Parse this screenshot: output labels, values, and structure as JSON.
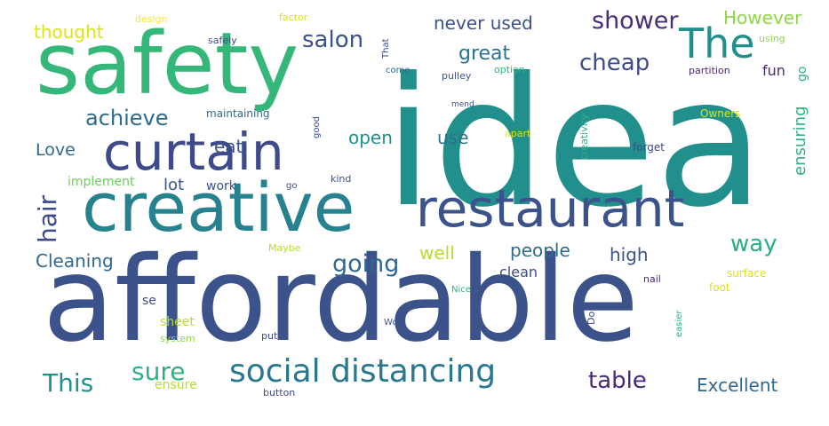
{
  "palette": {
    "navy": "#3b528b",
    "indigo": "#482878",
    "purple": "#440154",
    "blue": "#31688e",
    "teal": "#21908d",
    "teal2": "#26828e",
    "green": "#35b779",
    "green2": "#2db27d",
    "lime": "#6ece58",
    "lime2": "#8fd744",
    "yellow": "#b5de2b",
    "yellow2": "#dde318",
    "gold": "#fde725"
  },
  "words": [
    {
      "text": "idea",
      "color": "#21908d"
    },
    {
      "text": "affordable",
      "color": "#3b528b"
    },
    {
      "text": "safety",
      "color": "#35b779"
    },
    {
      "text": "creative",
      "color": "#26828e"
    },
    {
      "text": "restaurant",
      "color": "#3b528b"
    },
    {
      "text": "curtain",
      "color": "#3e4a89"
    },
    {
      "text": "The",
      "color": "#21908d"
    },
    {
      "text": "social distancing",
      "color": "#2a788e"
    },
    {
      "text": "achieve",
      "color": "#2f6b8e"
    },
    {
      "text": "salon",
      "color": "#3b528b"
    },
    {
      "text": "shower",
      "color": "#472d7b"
    },
    {
      "text": "cheap",
      "color": "#3e4a89"
    },
    {
      "text": "going",
      "color": "#31688e"
    },
    {
      "text": "hair",
      "color": "#3e4a89"
    },
    {
      "text": "This",
      "color": "#21918c"
    },
    {
      "text": "sure",
      "color": "#2db27d"
    },
    {
      "text": "table",
      "color": "#482878"
    },
    {
      "text": "way",
      "color": "#29af7f"
    },
    {
      "text": "Cleaning",
      "color": "#31688e"
    },
    {
      "text": "great",
      "color": "#2c728e"
    },
    {
      "text": "never used",
      "color": "#3b528b"
    },
    {
      "text": "However",
      "color": "#8fd744"
    },
    {
      "text": "thought",
      "color": "#dde318"
    },
    {
      "text": "eat",
      "color": "#3b528b"
    },
    {
      "text": "open",
      "color": "#21908d"
    },
    {
      "text": "use",
      "color": "#2c728e"
    },
    {
      "text": "Love",
      "color": "#31688e"
    },
    {
      "text": "people",
      "color": "#2f6b8e"
    },
    {
      "text": "high",
      "color": "#3b528b"
    },
    {
      "text": "well",
      "color": "#b5de2b"
    },
    {
      "text": "Excellent",
      "color": "#31688e"
    },
    {
      "text": "lot",
      "color": "#3b528b"
    },
    {
      "text": "ensuring",
      "color": "#2db27d"
    },
    {
      "text": "fun",
      "color": "#482878"
    },
    {
      "text": "go",
      "color": "#2db27d"
    },
    {
      "text": "implement",
      "color": "#6ece58"
    },
    {
      "text": "work",
      "color": "#3b528b"
    },
    {
      "text": "maintaining",
      "color": "#31688e"
    },
    {
      "text": "clean",
      "color": "#3e4a89"
    },
    {
      "text": "sheet",
      "color": "#b5de2b"
    },
    {
      "text": "ensure",
      "color": "#b5de2b"
    },
    {
      "text": "design",
      "color": "#fde725"
    },
    {
      "text": "factor",
      "color": "#dde318"
    },
    {
      "text": "safely",
      "color": "#3e4a89"
    },
    {
      "text": "That",
      "color": "#3e4a89"
    },
    {
      "text": "using",
      "color": "#8fd744"
    },
    {
      "text": "come",
      "color": "#31688e"
    },
    {
      "text": "option",
      "color": "#35b779"
    },
    {
      "text": "pulley",
      "color": "#3b528b"
    },
    {
      "text": "partition",
      "color": "#482878"
    },
    {
      "text": "mend",
      "color": "#3b528b"
    },
    {
      "text": "good",
      "color": "#3e4a89"
    },
    {
      "text": "creativity",
      "color": "#2db27d"
    },
    {
      "text": "Owners",
      "color": "#dde318"
    },
    {
      "text": "apart",
      "color": "#dde318"
    },
    {
      "text": "forget",
      "color": "#3e4a89"
    },
    {
      "text": "kind",
      "color": "#3b528b"
    },
    {
      "text": "go",
      "color": "#3e4a89"
    },
    {
      "text": "Maybe",
      "color": "#b5de2b"
    },
    {
      "text": "Nice",
      "color": "#2db27d"
    },
    {
      "text": "nail",
      "color": "#482878"
    },
    {
      "text": "surface",
      "color": "#dde318"
    },
    {
      "text": "foot",
      "color": "#dde318"
    },
    {
      "text": "se",
      "color": "#3e4a89"
    },
    {
      "text": "system",
      "color": "#8fd744"
    },
    {
      "text": "put",
      "color": "#3e4a89"
    },
    {
      "text": "Wow",
      "color": "#3b528b"
    },
    {
      "text": "Do",
      "color": "#3e4a89"
    },
    {
      "text": "easier",
      "color": "#2db27d"
    },
    {
      "text": "button",
      "color": "#3e4a89"
    }
  ]
}
